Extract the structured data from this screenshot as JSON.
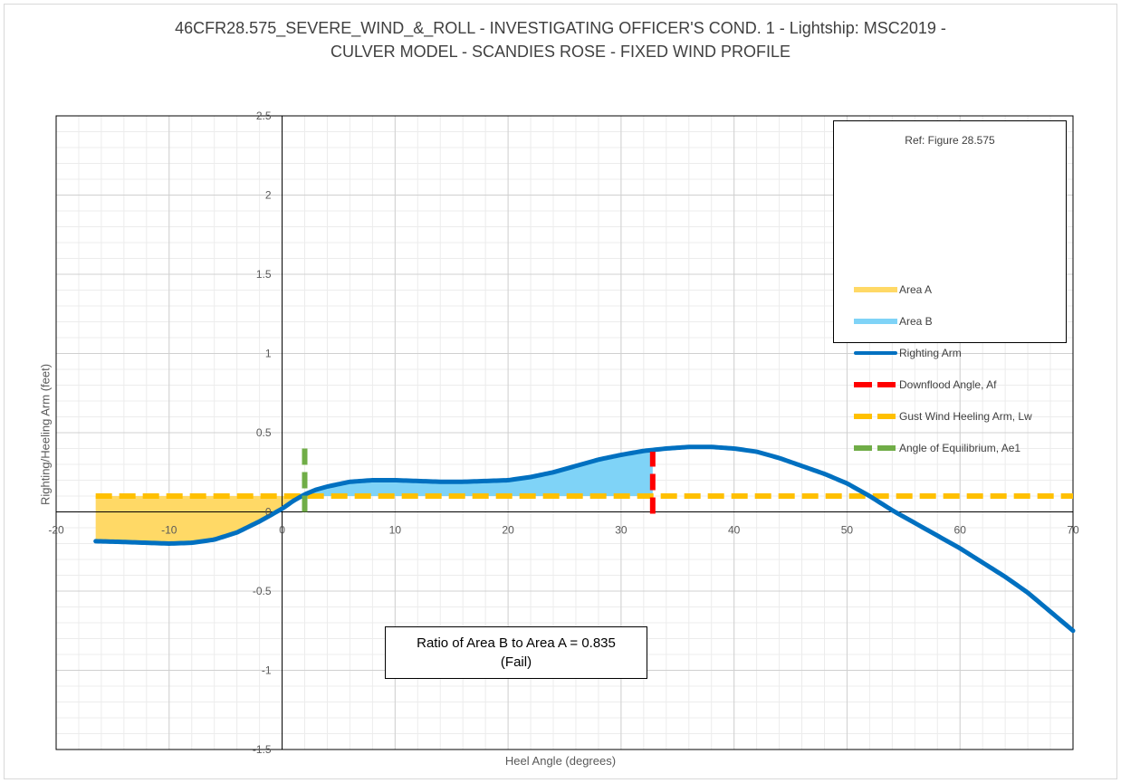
{
  "chart_data": {
    "type": "line",
    "title_lines": [
      "46CFR28.575_SEVERE_WIND_&_ROLL - INVESTIGATING OFFICER'S COND. 1 - Lightship: MSC2019 -",
      "CULVER MODEL - SCANDIES ROSE - FIXED WIND PROFILE"
    ],
    "xlabel": "Heel Angle (degrees)",
    "ylabel": "Righting/Heeling Arm (feet)",
    "xlim": [
      -20,
      70
    ],
    "ylim": [
      -1.5,
      2.5
    ],
    "x_ticks": [
      "-20",
      "-10",
      "0",
      "10",
      "20",
      "30",
      "40",
      "50",
      "60",
      "70"
    ],
    "y_ticks": [
      "-1.5",
      "-1",
      "-0.5",
      "0",
      "0.5",
      "1",
      "1.5",
      "2",
      "2.5"
    ],
    "grid": true,
    "legend_position": "top-right",
    "legend": {
      "title": "Ref: Figure 28.575",
      "entries": [
        "Area A",
        "Area B",
        "Righting Arm",
        "Downflood Angle, Af",
        "Gust Wind Heeling Arm, Lw",
        "Angle of Equilibrium, Ae1"
      ]
    },
    "series": [
      {
        "name": "Righting Arm",
        "color": "#0070c0",
        "x": [
          -16.5,
          -14,
          -12,
          -10,
          -8,
          -6,
          -4,
          -2,
          -1,
          0,
          1,
          2,
          3,
          4,
          6,
          8,
          10,
          12,
          14,
          16,
          18,
          20,
          22,
          24,
          26,
          28,
          30,
          32,
          34,
          36,
          38,
          40,
          42,
          44,
          46,
          48,
          50,
          52,
          54,
          56,
          58,
          60,
          62,
          64,
          66,
          68,
          70
        ],
        "y": [
          -0.185,
          -0.19,
          -0.195,
          -0.2,
          -0.195,
          -0.175,
          -0.13,
          -0.06,
          -0.02,
          0.02,
          0.07,
          0.11,
          0.14,
          0.16,
          0.19,
          0.2,
          0.2,
          0.195,
          0.19,
          0.19,
          0.195,
          0.2,
          0.22,
          0.25,
          0.29,
          0.33,
          0.36,
          0.385,
          0.4,
          0.41,
          0.41,
          0.4,
          0.38,
          0.34,
          0.29,
          0.24,
          0.18,
          0.1,
          0.01,
          -0.07,
          -0.15,
          -0.23,
          -0.32,
          -0.41,
          -0.51,
          -0.63,
          -0.75
        ]
      },
      {
        "name": "Downflood Angle, Af",
        "color": "#ff0000",
        "x": [
          32.8,
          32.8
        ],
        "y": [
          0.0,
          0.38
        ]
      },
      {
        "name": "Gust Wind Heeling Arm, Lw",
        "color": "#ffc000",
        "x": [
          -16.5,
          70
        ],
        "y": [
          0.1,
          0.1
        ]
      },
      {
        "name": "Angle of Equilibrium, Ae1",
        "color": "#70ad47",
        "x": [
          2.0,
          2.0
        ],
        "y": [
          0.0,
          0.43
        ]
      }
    ],
    "areas": [
      {
        "name": "Area A",
        "color": "#ffd966",
        "x_range": [
          -16.5,
          1.3
        ],
        "between": [
          "Gust Wind Heeling Arm, Lw",
          "Righting Arm"
        ]
      },
      {
        "name": "Area B",
        "color": "#7fd3f7",
        "x_range": [
          2.0,
          32.8
        ],
        "between": [
          "Righting Arm",
          "Gust Wind Heeling Arm, Lw"
        ]
      }
    ],
    "annotation": {
      "line1": "Ratio of Area B to Area A = 0.835",
      "line2": "(Fail)"
    }
  }
}
